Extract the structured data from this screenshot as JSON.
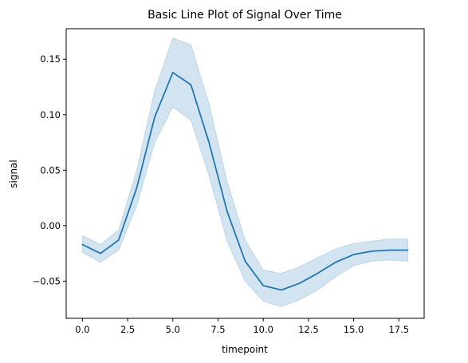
{
  "chart_data": {
    "type": "line",
    "title": "Basic Line Plot of Signal Over Time",
    "xlabel": "timepoint",
    "ylabel": "signal",
    "xlim": [
      -0.9,
      18.9
    ],
    "ylim": [
      -0.0835,
      0.1775
    ],
    "xticks": [
      0.0,
      2.5,
      5.0,
      7.5,
      10.0,
      12.5,
      15.0,
      17.5
    ],
    "xtick_labels": [
      "0.0",
      "2.5",
      "5.0",
      "7.5",
      "10.0",
      "12.5",
      "15.0",
      "17.5"
    ],
    "yticks": [
      -0.05,
      0.0,
      0.05,
      0.1,
      0.15
    ],
    "ytick_labels": [
      "−0.05",
      "0.00",
      "0.05",
      "0.10",
      "0.15"
    ],
    "grid": false,
    "series": [
      {
        "x": [
          0,
          1,
          2,
          3,
          4,
          5,
          6,
          7,
          8,
          9,
          10,
          11,
          12,
          13,
          14,
          15,
          16,
          17,
          18
        ],
        "y": [
          -0.017,
          -0.025,
          -0.013,
          0.034,
          0.098,
          0.138,
          0.127,
          0.075,
          0.013,
          -0.032,
          -0.054,
          -0.058,
          -0.052,
          -0.043,
          -0.033,
          -0.026,
          -0.023,
          -0.022,
          -0.022
        ],
        "ci_lower": [
          -0.024,
          -0.033,
          -0.022,
          0.018,
          0.075,
          0.107,
          0.095,
          0.045,
          -0.014,
          -0.05,
          -0.068,
          -0.073,
          -0.067,
          -0.058,
          -0.046,
          -0.036,
          -0.032,
          -0.031,
          -0.032
        ],
        "ci_upper": [
          -0.009,
          -0.017,
          -0.004,
          0.05,
          0.122,
          0.169,
          0.163,
          0.11,
          0.04,
          -0.013,
          -0.04,
          -0.043,
          -0.037,
          -0.029,
          -0.021,
          -0.016,
          -0.014,
          -0.012,
          -0.012
        ],
        "color": "#1f77b4",
        "band_color": "#1f77b4"
      }
    ]
  }
}
